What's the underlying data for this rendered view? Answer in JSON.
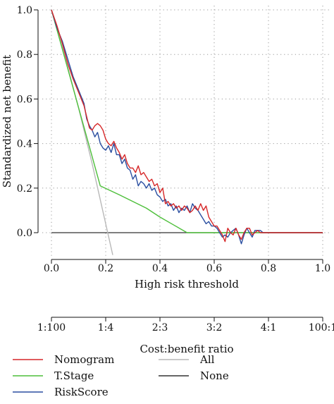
{
  "chart_data": {
    "type": "line",
    "xlabel": "High risk threshold",
    "ylabel": "Standardized net benefit",
    "xlim": [
      0,
      1
    ],
    "ylim": [
      -0.05,
      1.0
    ],
    "x_ticks": [
      "0.0",
      "0.2",
      "0.4",
      "0.6",
      "0.8",
      "1.0"
    ],
    "y_ticks": [
      "0.0",
      "0.2",
      "0.4",
      "0.6",
      "0.8",
      "1.0"
    ],
    "grid": true,
    "secondary_axis": {
      "label": "Cost:benefit ratio",
      "ticks": [
        "1:100",
        "1:4",
        "2:3",
        "3:2",
        "4:1",
        "100:1"
      ]
    },
    "legend_position": "bottom",
    "series": [
      {
        "name": "Nomogram",
        "color": "#d62728",
        "points": [
          [
            0.0,
            1.0
          ],
          [
            0.02,
            0.93
          ],
          [
            0.04,
            0.85
          ],
          [
            0.06,
            0.76
          ],
          [
            0.08,
            0.69
          ],
          [
            0.1,
            0.63
          ],
          [
            0.12,
            0.57
          ],
          [
            0.13,
            0.52
          ],
          [
            0.14,
            0.47
          ],
          [
            0.15,
            0.46
          ],
          [
            0.16,
            0.48
          ],
          [
            0.17,
            0.49
          ],
          [
            0.18,
            0.48
          ],
          [
            0.19,
            0.46
          ],
          [
            0.2,
            0.42
          ],
          [
            0.21,
            0.4
          ],
          [
            0.22,
            0.39
          ],
          [
            0.23,
            0.41
          ],
          [
            0.24,
            0.38
          ],
          [
            0.25,
            0.36
          ],
          [
            0.26,
            0.33
          ],
          [
            0.27,
            0.35
          ],
          [
            0.28,
            0.31
          ],
          [
            0.29,
            0.29
          ],
          [
            0.3,
            0.29
          ],
          [
            0.31,
            0.27
          ],
          [
            0.32,
            0.3
          ],
          [
            0.33,
            0.26
          ],
          [
            0.34,
            0.27
          ],
          [
            0.35,
            0.25
          ],
          [
            0.36,
            0.23
          ],
          [
            0.37,
            0.24
          ],
          [
            0.38,
            0.21
          ],
          [
            0.39,
            0.22
          ],
          [
            0.4,
            0.18
          ],
          [
            0.41,
            0.2
          ],
          [
            0.42,
            0.13
          ],
          [
            0.43,
            0.14
          ],
          [
            0.44,
            0.12
          ],
          [
            0.45,
            0.13
          ],
          [
            0.46,
            0.11
          ],
          [
            0.47,
            0.12
          ],
          [
            0.48,
            0.1
          ],
          [
            0.49,
            0.12
          ],
          [
            0.5,
            0.11
          ],
          [
            0.51,
            0.09
          ],
          [
            0.52,
            0.1
          ],
          [
            0.53,
            0.12
          ],
          [
            0.54,
            0.1
          ],
          [
            0.55,
            0.13
          ],
          [
            0.56,
            0.1
          ],
          [
            0.57,
            0.12
          ],
          [
            0.58,
            0.07
          ],
          [
            0.59,
            0.05
          ],
          [
            0.6,
            0.03
          ],
          [
            0.61,
            0.03
          ],
          [
            0.62,
            0.01
          ],
          [
            0.63,
            -0.01
          ],
          [
            0.64,
            -0.04
          ],
          [
            0.65,
            0.02
          ],
          [
            0.66,
            0.0
          ],
          [
            0.67,
            -0.01
          ],
          [
            0.68,
            0.02
          ],
          [
            0.69,
            -0.01
          ],
          [
            0.7,
            -0.03
          ],
          [
            0.71,
            0.0
          ],
          [
            0.72,
            0.02
          ],
          [
            0.73,
            0.02
          ],
          [
            0.74,
            -0.01
          ],
          [
            0.75,
            0.0
          ],
          [
            0.76,
            0.01
          ],
          [
            0.77,
            0.0
          ],
          [
            0.78,
            0.0
          ],
          [
            0.79,
            0.0
          ],
          [
            1.0,
            0.0
          ]
        ]
      },
      {
        "name": "T.Stage",
        "color": "#4dbf3a",
        "points": [
          [
            0.0,
            1.0
          ],
          [
            0.18,
            0.21
          ],
          [
            0.25,
            0.17
          ],
          [
            0.3,
            0.14
          ],
          [
            0.35,
            0.11
          ],
          [
            0.4,
            0.07
          ],
          [
            0.45,
            0.035
          ],
          [
            0.5,
            0.0
          ],
          [
            1.0,
            0.0
          ]
        ]
      },
      {
        "name": "RiskScore",
        "color": "#2a4ea0",
        "points": [
          [
            0.0,
            1.0
          ],
          [
            0.02,
            0.92
          ],
          [
            0.04,
            0.86
          ],
          [
            0.06,
            0.78
          ],
          [
            0.08,
            0.7
          ],
          [
            0.1,
            0.64
          ],
          [
            0.12,
            0.58
          ],
          [
            0.13,
            0.51
          ],
          [
            0.14,
            0.48
          ],
          [
            0.15,
            0.46
          ],
          [
            0.16,
            0.43
          ],
          [
            0.17,
            0.45
          ],
          [
            0.18,
            0.4
          ],
          [
            0.19,
            0.38
          ],
          [
            0.2,
            0.37
          ],
          [
            0.21,
            0.39
          ],
          [
            0.22,
            0.36
          ],
          [
            0.23,
            0.4
          ],
          [
            0.24,
            0.35
          ],
          [
            0.25,
            0.35
          ],
          [
            0.26,
            0.31
          ],
          [
            0.27,
            0.33
          ],
          [
            0.28,
            0.29
          ],
          [
            0.29,
            0.28
          ],
          [
            0.3,
            0.24
          ],
          [
            0.31,
            0.26
          ],
          [
            0.32,
            0.21
          ],
          [
            0.33,
            0.23
          ],
          [
            0.34,
            0.22
          ],
          [
            0.35,
            0.2
          ],
          [
            0.36,
            0.22
          ],
          [
            0.37,
            0.19
          ],
          [
            0.38,
            0.2
          ],
          [
            0.39,
            0.17
          ],
          [
            0.4,
            0.16
          ],
          [
            0.41,
            0.14
          ],
          [
            0.42,
            0.15
          ],
          [
            0.43,
            0.12
          ],
          [
            0.44,
            0.13
          ],
          [
            0.45,
            0.1
          ],
          [
            0.46,
            0.12
          ],
          [
            0.47,
            0.09
          ],
          [
            0.48,
            0.11
          ],
          [
            0.49,
            0.1
          ],
          [
            0.5,
            0.12
          ],
          [
            0.51,
            0.09
          ],
          [
            0.52,
            0.13
          ],
          [
            0.53,
            0.11
          ],
          [
            0.54,
            0.1
          ],
          [
            0.55,
            0.08
          ],
          [
            0.56,
            0.06
          ],
          [
            0.57,
            0.04
          ],
          [
            0.58,
            0.05
          ],
          [
            0.59,
            0.03
          ],
          [
            0.6,
            0.03
          ],
          [
            0.61,
            0.02
          ],
          [
            0.62,
            0.0
          ],
          [
            0.63,
            -0.02
          ],
          [
            0.64,
            -0.01
          ],
          [
            0.65,
            -0.02
          ],
          [
            0.66,
            0.0
          ],
          [
            0.67,
            0.01
          ],
          [
            0.68,
            0.02
          ],
          [
            0.69,
            -0.01
          ],
          [
            0.7,
            -0.05
          ],
          [
            0.71,
            -0.01
          ],
          [
            0.72,
            0.02
          ],
          [
            0.73,
            0.0
          ],
          [
            0.74,
            -0.02
          ],
          [
            0.75,
            0.01
          ],
          [
            0.76,
            0.01
          ],
          [
            0.77,
            0.01
          ],
          [
            0.78,
            0.0
          ],
          [
            1.0,
            0.0
          ]
        ]
      },
      {
        "name": "All",
        "color": "#b8b8b8",
        "points": [
          [
            0.0,
            1.0
          ],
          [
            0.05,
            0.79
          ],
          [
            0.1,
            0.56
          ],
          [
            0.15,
            0.31
          ],
          [
            0.2,
            0.04
          ],
          [
            0.226,
            -0.1
          ]
        ]
      },
      {
        "name": "None",
        "color": "#333333",
        "points": [
          [
            0.0,
            0.0
          ],
          [
            1.0,
            0.0
          ]
        ]
      }
    ]
  }
}
